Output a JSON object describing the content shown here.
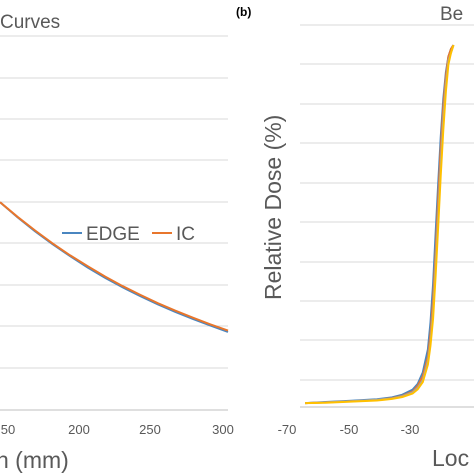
{
  "chart_data": [
    {
      "type": "line",
      "panel": "a",
      "title": "Curves",
      "xlabel": "h (mm)",
      "ylabel": "",
      "xlim": [
        40,
        300
      ],
      "xticks": [
        "50",
        "200",
        "250",
        "300"
      ],
      "grid": true,
      "legend_position": "right",
      "series": [
        {
          "name": "EDGE",
          "color": "#4a86c0",
          "x": [
            40,
            60,
            80,
            100,
            120,
            140,
            160,
            180,
            200,
            220,
            240,
            260,
            280,
            300
          ],
          "y": [
            50.0,
            46.4,
            43.0,
            39.9,
            37.0,
            34.3,
            31.8,
            29.5,
            27.4,
            25.4,
            23.6,
            21.9,
            20.3,
            18.8
          ]
        },
        {
          "name": "IC",
          "color": "#e8762c",
          "x": [
            40,
            60,
            80,
            100,
            120,
            140,
            160,
            180,
            200,
            220,
            240,
            260,
            280,
            300
          ],
          "y": [
            50.0,
            46.5,
            43.2,
            40.1,
            37.2,
            34.6,
            32.1,
            29.8,
            27.7,
            25.7,
            23.9,
            22.2,
            20.6,
            19.1
          ]
        }
      ]
    },
    {
      "type": "line",
      "panel": "b",
      "panel_label": "(b)",
      "title": "Be",
      "xlabel": "Loc",
      "ylabel": "Relative Dose (%)",
      "xlim": [
        -70,
        -2
      ],
      "xticks": [
        "-70",
        "-50",
        "-30"
      ],
      "grid": true,
      "series": [
        {
          "color": "#4a86c0",
          "x": [
            -68,
            -60,
            -50,
            -40,
            -34,
            -30,
            -26,
            -24,
            -22,
            -20,
            -19,
            -18,
            -17,
            -16,
            -15,
            -14,
            -13,
            -12,
            -11,
            -10
          ],
          "y": [
            1,
            1.3,
            1.6,
            2.0,
            2.5,
            3.2,
            4.5,
            6,
            9,
            15,
            22,
            32,
            45,
            58,
            70,
            80,
            87,
            91,
            93,
            94
          ]
        },
        {
          "color": "#e8762c",
          "x": [
            -68,
            -60,
            -50,
            -40,
            -34,
            -30,
            -26,
            -24,
            -22,
            -20,
            -19,
            -18,
            -17,
            -16,
            -15,
            -14,
            -13,
            -12,
            -11,
            -10
          ],
          "y": [
            1,
            1.2,
            1.5,
            1.8,
            2.3,
            2.9,
            4.0,
            5.5,
            8,
            13,
            19,
            28,
            40,
            54,
            67,
            78,
            86,
            91,
            93,
            94
          ]
        },
        {
          "color": "#a5a5a5",
          "x": [
            -68,
            -60,
            -50,
            -40,
            -34,
            -30,
            -26,
            -24,
            -22,
            -20,
            -19,
            -18,
            -17,
            -16,
            -15,
            -14,
            -13,
            -12,
            -11,
            -10
          ],
          "y": [
            1,
            1.2,
            1.5,
            1.9,
            2.2,
            2.8,
            3.8,
            5,
            7,
            12,
            17,
            25,
            37,
            50,
            63,
            75,
            84,
            90,
            92,
            94
          ]
        },
        {
          "color": "#ffc000",
          "x": [
            -68,
            -60,
            -50,
            -40,
            -34,
            -30,
            -26,
            -24,
            -22,
            -20,
            -19,
            -18,
            -17,
            -16,
            -15,
            -14,
            -13,
            -12,
            -11,
            -10
          ],
          "y": [
            1,
            1.1,
            1.4,
            1.7,
            2.1,
            2.6,
            3.5,
            4.6,
            6.5,
            11,
            16,
            23,
            34,
            47,
            60,
            72,
            82,
            89,
            92,
            94
          ]
        }
      ]
    }
  ]
}
